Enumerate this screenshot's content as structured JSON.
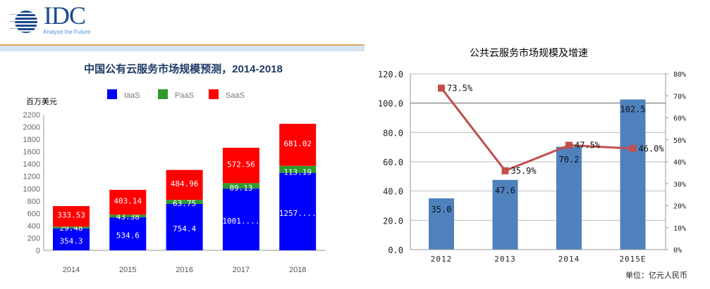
{
  "logo": {
    "brand": "IDC",
    "tagline": "Analyze the Future"
  },
  "colors": {
    "iaas": "#0000ff",
    "paas": "#2e9a2e",
    "saas": "#ff0000",
    "bar2": "#4f81bd",
    "line2": "#c0504d"
  },
  "chart_data": [
    {
      "type": "bar",
      "stacked": true,
      "title": "中国公有云服务市场规模预测，2014-2018",
      "ylabel": "百万美元",
      "categories": [
        "2014",
        "2015",
        "2016",
        "2017",
        "2018"
      ],
      "series": [
        {
          "name": "IaaS",
          "values": [
            354.3,
            534.6,
            754.4,
            1001.0,
            1257.0
          ],
          "labels": [
            "354.3",
            "534.6",
            "754.4",
            "1001....",
            "1257...."
          ]
        },
        {
          "name": "PaaS",
          "values": [
            29.48,
            43.38,
            63.75,
            89.13,
            113.19
          ],
          "labels": [
            "29.48",
            "43.38",
            "63.75",
            "89.13",
            "113.19"
          ]
        },
        {
          "name": "SaaS",
          "values": [
            333.53,
            403.14,
            484.96,
            572.56,
            681.02
          ],
          "labels": [
            "333.53",
            "403.14",
            "484.96",
            "572.56",
            "681.02"
          ]
        }
      ],
      "ylim": [
        0,
        2200
      ],
      "yticks": [
        "0",
        "200",
        "400",
        "600",
        "800",
        "1000",
        "1200",
        "1400",
        "1600",
        "1800",
        "2000",
        "2200"
      ],
      "legend": "top"
    },
    {
      "type": "bar+line",
      "title": "公共云服务市场规模及增速",
      "unit": "单位：亿元人民币",
      "categories": [
        "2012",
        "2013",
        "2014",
        "2015E"
      ],
      "bars": {
        "values": [
          35.0,
          47.6,
          70.2,
          102.5
        ],
        "labels": [
          "35.0",
          "47.6",
          "70.2",
          "102.5"
        ]
      },
      "line": {
        "values": [
          73.5,
          35.9,
          47.5,
          46.0
        ],
        "labels": [
          "73.5%",
          "35.9%",
          "47.5%",
          "46.0%"
        ]
      },
      "ylim": [
        0,
        120
      ],
      "yticks": [
        "0.0",
        "20.0",
        "40.0",
        "60.0",
        "80.0",
        "100.0",
        "120.0"
      ],
      "y2lim": [
        0,
        80
      ],
      "y2ticks": [
        "0%",
        "10%",
        "20%",
        "30%",
        "40%",
        "50%",
        "60%",
        "70%",
        "80%"
      ],
      "grid": true
    }
  ]
}
